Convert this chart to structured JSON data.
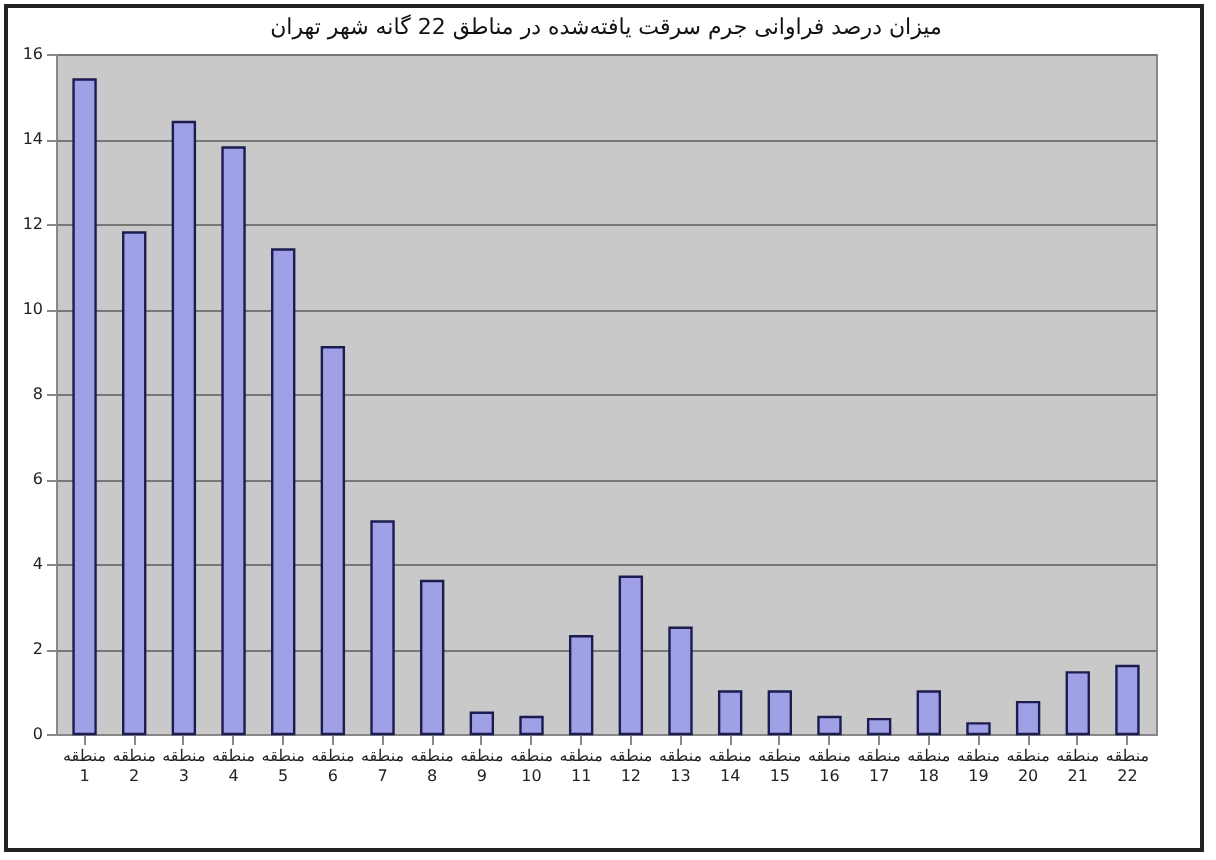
{
  "chart_data": {
    "type": "bar",
    "title": "میزان درصد فراوانی جرم سرقت یافته‌شده در مناطق 22 گانه شهر تهران",
    "categories": [
      "منطقه 1",
      "منطقه 2",
      "منطقه 3",
      "منطقه 4",
      "منطقه 5",
      "منطقه 6",
      "منطقه 7",
      "منطقه 8",
      "منطقه 9",
      "منطقه 10",
      "منطقه 11",
      "منطقه 12",
      "منطقه 13",
      "منطقه 14",
      "منطقه 15",
      "منطقه 16",
      "منطقه 17",
      "منطقه 18",
      "منطقه 19",
      "منطقه 20",
      "منطقه 21",
      "منطقه 22"
    ],
    "values": [
      15.4,
      11.8,
      14.4,
      13.8,
      11.4,
      9.1,
      5.0,
      3.6,
      0.5,
      0.4,
      2.3,
      3.7,
      2.5,
      1.0,
      1.0,
      0.4,
      0.35,
      1.0,
      0.25,
      0.75,
      1.45,
      1.6
    ],
    "color": "#a0a0e6",
    "ylim": [
      0,
      16
    ],
    "yticks": [
      0,
      2,
      4,
      6,
      8,
      10,
      12,
      14,
      16
    ],
    "grid": "y"
  }
}
